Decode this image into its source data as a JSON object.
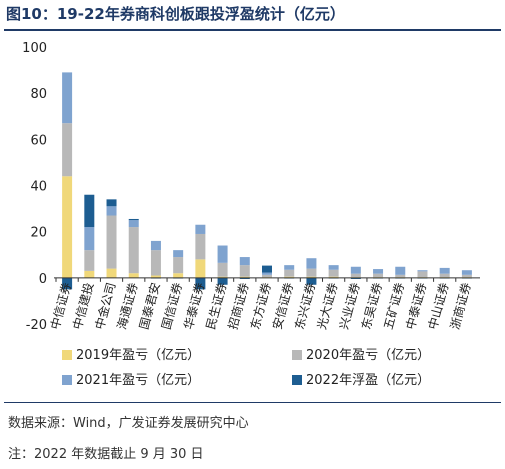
{
  "title": "图10：19-22年券商科创板跟投浮盈统计（亿元）",
  "source": "数据来源：Wind，广发证券发展研究中心",
  "footnote": "注：2022 年数据截止 9 月 30 日",
  "chart_data": {
    "type": "bar",
    "stacked": true,
    "categories": [
      "中信证券",
      "中信建投",
      "中金公司",
      "海通证券",
      "国泰君安",
      "国信证券",
      "华泰证券",
      "民生证券",
      "招商证券",
      "东方证券",
      "安信证券",
      "东兴证券",
      "光大证券",
      "兴业证券",
      "东吴证券",
      "五矿证券",
      "中泰证券",
      "中山证券",
      "浙商证券"
    ],
    "series": [
      {
        "name": "2019年盈亏（亿元）",
        "color": "#f0d87a",
        "values": [
          44,
          3,
          4,
          2,
          1,
          2,
          8,
          0.5,
          0.5,
          0.3,
          0.5,
          0.5,
          0.5,
          0.3,
          0.3,
          0.3,
          0.3,
          0.3,
          0.3
        ]
      },
      {
        "name": "2020年盈亏（亿元）",
        "color": "#b8b8b8",
        "values": [
          23,
          9,
          23,
          20,
          11,
          7,
          11,
          6,
          5,
          1,
          3,
          3.5,
          3,
          1.5,
          1.5,
          1,
          2.5,
          1.5,
          1
        ]
      },
      {
        "name": "2021年盈亏（亿元）",
        "color": "#7fa3cf",
        "values": [
          22,
          10,
          4,
          3,
          4,
          3,
          4,
          7.5,
          3.5,
          1,
          2,
          4.5,
          2,
          3,
          2,
          3.5,
          0.5,
          2.5,
          2
        ]
      },
      {
        "name": "2022年浮盈（亿元）",
        "color": "#1d5d91",
        "values": [
          -5,
          14,
          3,
          0.5,
          -0.3,
          -0.3,
          -5,
          -3,
          -0.5,
          3,
          -0.3,
          -3,
          -0.3,
          -0.5,
          -0.3,
          -0.3,
          -0.3,
          -0.3,
          -0.3
        ]
      }
    ],
    "ylim": [
      -20,
      100
    ],
    "yticks": [
      -20,
      0,
      20,
      40,
      60,
      80,
      100
    ],
    "grid": false,
    "legend": "bottom"
  }
}
